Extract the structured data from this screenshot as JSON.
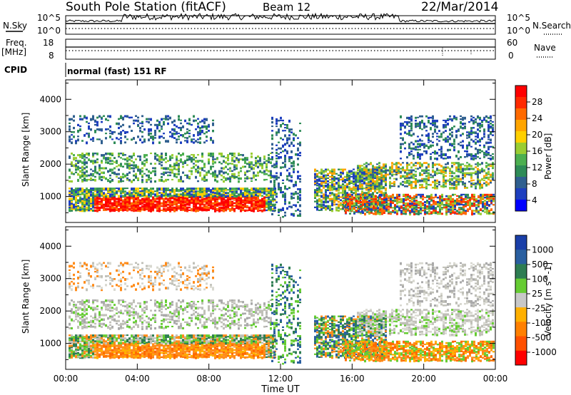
{
  "header": {
    "station": "South Pole Station (fitACF)",
    "beam": "Beam 12",
    "date": "22/Mar/2014"
  },
  "side_labels": {
    "nsky": "N.Sky",
    "nsearch": "N.Search",
    "freq": "Freq.",
    "freq_unit": "[MHz]",
    "nave": "Nave",
    "cpid": "CPID"
  },
  "mode_text": "normal (fast) 151 RF",
  "strip_ticks": {
    "noise_left_top": "10^5",
    "noise_left_bottom": "10^0",
    "noise_right_top": "10^5",
    "noise_right_bottom": "10^0",
    "freq_left_top": "18",
    "freq_left_bottom": "8",
    "nave_right_top": "60",
    "nave_right_bottom": "0"
  },
  "chart_data": [
    {
      "type": "heatmap",
      "panel": "power",
      "xlabel": "Time UT",
      "ylabel": "Slant Range [km]",
      "x_ticks": [
        "00:00",
        "04:00",
        "08:00",
        "12:00",
        "16:00",
        "20:00",
        "00:00"
      ],
      "y_ticks": [
        "1000",
        "2000",
        "3000",
        "4000"
      ],
      "ylim": [
        200,
        4600
      ],
      "colorbar": {
        "label": "Power [dB]",
        "ticks": [
          "28",
          "24",
          "20",
          "16",
          "12",
          "8",
          "4"
        ],
        "colors": [
          "#ff0000",
          "#ff2a00",
          "#ff6a00",
          "#ffa500",
          "#ffd000",
          "#9acd32",
          "#4caf50",
          "#2e8b57",
          "#2f5f8f",
          "#1e3fbf",
          "#0000ff"
        ]
      }
    },
    {
      "type": "heatmap",
      "panel": "velocity",
      "xlabel": "Time UT",
      "ylabel": "Slant Range [km]",
      "x_ticks": [
        "00:00",
        "04:00",
        "08:00",
        "12:00",
        "16:00",
        "20:00",
        "00:00"
      ],
      "y_ticks": [
        "1000",
        "2000",
        "3000",
        "4000"
      ],
      "ylim": [
        200,
        4600
      ],
      "colorbar": {
        "label": "Velocity [m s^-1]",
        "ticks": [
          "1000",
          "500",
          "100",
          "25",
          "-25",
          "-100",
          "-500",
          "-1000"
        ],
        "colors": [
          "#1a3fa8",
          "#2a5fa0",
          "#2e7d52",
          "#66cc33",
          "#c8c8c8",
          "#ffb000",
          "#ff8000",
          "#ff5000",
          "#ff0000"
        ]
      }
    }
  ],
  "colors": {
    "power_red": "#ff0000",
    "power_green": "#3a9a5a",
    "power_blue": "#1e3fbf",
    "vel_orange": "#ff8c1a",
    "vel_gray": "#c0c0b8",
    "vel_green": "#2e7d52"
  }
}
